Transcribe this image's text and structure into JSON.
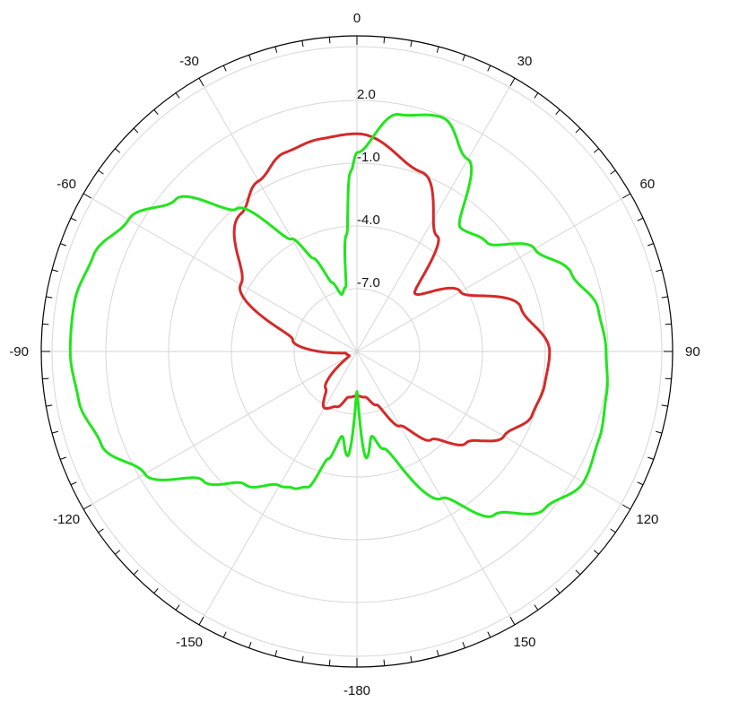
{
  "chart_data": {
    "type": "polar",
    "angle_unit": "degrees",
    "angle_labels": [
      "0",
      "30",
      "60",
      "90",
      "120",
      "150",
      "-180",
      "-150",
      "-120",
      "-90",
      "-60",
      "-30"
    ],
    "radial_labels": [
      "2.0",
      "-1.0",
      "-4.0",
      "-7.0"
    ],
    "grid": true,
    "colors": {
      "red_series": "#d42a2a",
      "green_series": "#22e51d",
      "grid": "#d6d6d6",
      "frame": "#000000"
    },
    "series": [
      {
        "color": "#d42a2a",
        "theta": [
          0,
          20,
          35,
          45,
          60,
          75,
          90,
          100,
          110,
          120,
          130,
          140,
          150,
          160,
          170,
          180,
          190,
          200,
          210,
          220,
          240,
          260,
          280,
          300,
          320,
          330,
          340,
          350,
          360
        ],
        "r": [
          -0.7,
          -2.0,
          -4.4,
          -7.2,
          -5.4,
          -3.0,
          -1.9,
          -2.0,
          -2.2,
          -3.0,
          -4.3,
          -5.6,
          -7.0,
          -8.4,
          -8.9,
          -9.0,
          -8.9,
          -8.3,
          -8.0,
          -8.8,
          -10.7,
          -10.6,
          -8.0,
          -4.7,
          -2.5,
          -1.7,
          -1.0,
          -0.8,
          -0.7
        ]
      },
      {
        "color": "#22e51d",
        "theta": [
          0,
          10,
          20,
          30,
          40,
          50,
          60,
          70,
          80,
          90,
          100,
          110,
          120,
          130,
          140,
          150,
          165,
          170,
          175,
          180,
          185,
          190,
          195,
          200,
          205,
          210,
          220,
          230,
          240,
          250,
          260,
          270,
          280,
          290,
          300,
          310,
          320,
          330,
          335,
          340,
          345,
          350,
          355,
          358,
          360
        ],
        "r": [
          -1.6,
          0.4,
          0.8,
          -0.5,
          -3.4,
          -3.0,
          -1.3,
          -0.2,
          0.6,
          0.8,
          1.0,
          1.2,
          1.4,
          0.6,
          -0.9,
          -3.0,
          -6.3,
          -7.0,
          -6.0,
          -9.2,
          -6.1,
          -7.0,
          -5.8,
          -4.2,
          -3.9,
          -3.7,
          -2.8,
          -1.5,
          0.6,
          1.9,
          2.4,
          2.6,
          2.6,
          2.3,
          1.5,
          0.2,
          -2.2,
          -4.9,
          -6.2,
          -7.6,
          -8.3,
          -8.0,
          -5.5,
          -2.5,
          -1.6
        ]
      }
    ]
  }
}
